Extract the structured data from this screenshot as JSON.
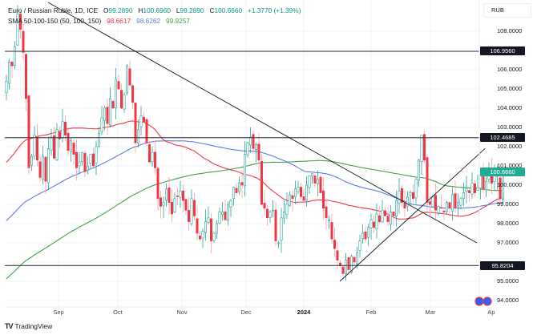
{
  "legend": {
    "symbol": "Euro / Russian Ruble, 1D, ICE",
    "open_label": "O",
    "open": "99.2890",
    "high_label": "H",
    "high": "100.6960",
    "low_label": "L",
    "low": "99.2890",
    "close_label": "C",
    "close": "100.6660",
    "change": "+1.3770 (+1.39%)",
    "indicator": "SMA 50-100-150 (50, 100, 150)",
    "sma50": "98.6617",
    "sma100": "98.6262",
    "sma150": "99.9257"
  },
  "currency": "RUB",
  "price_axis": [
    "108.0000",
    "106.0000",
    "105.0000",
    "104.0000",
    "103.0000",
    "102.0000",
    "101.0000",
    "100.0000",
    "99.0000",
    "98.0000",
    "97.0000",
    "95.0000",
    "94.0000"
  ],
  "price_tags": {
    "level_high": "106.9560",
    "level_mid": "102.4685",
    "last_price": "100.6660",
    "level_low": "95.8204"
  },
  "time_axis": [
    "Sep",
    "Oct",
    "Nov",
    "Dec",
    "2024",
    "Feb",
    "Mar",
    "Ap"
  ],
  "branding": {
    "name": "TradingView",
    "logo_icon": "tradingview-logo-icon"
  },
  "colors": {
    "up": "#26a69a",
    "down": "#f23645",
    "sma50": "#f23645",
    "sma100": "#5b7de0",
    "sma150": "#43a047",
    "last_price_bg": "#22ab94"
  },
  "chart_data": {
    "type": "candlestick",
    "title": "Euro / Russian Ruble, 1D, ICE",
    "xlabel": "",
    "ylabel": "RUB",
    "ylim": [
      93.7,
      109.6
    ],
    "x_ticks": [
      "Sep",
      "Oct",
      "Nov",
      "Dec",
      "2024",
      "Feb",
      "Mar",
      "Ap"
    ],
    "y_ticks": [
      94,
      95,
      96,
      97,
      98,
      99,
      100,
      101,
      102,
      103,
      104,
      105,
      106,
      107,
      108
    ],
    "horizontal_levels": [
      106.956,
      102.4685,
      95.8204
    ],
    "trendlines": [
      {
        "name": "descending",
        "from": [
          60,
          109.5
        ],
        "to": [
          595,
          97.0
        ]
      },
      {
        "name": "ascending",
        "from": [
          424,
          95.0
        ],
        "to": [
          605,
          101.9
        ]
      }
    ],
    "last": {
      "open": 99.289,
      "high": 100.696,
      "low": 99.289,
      "close": 100.666,
      "change": 1.377,
      "change_pct": 1.39
    },
    "closes": [
      105.4,
      106.4,
      106.2,
      107.2,
      108.9,
      108.1,
      106.9,
      104.5,
      100.9,
      101.5,
      102.6,
      101.3,
      100.4,
      101.5,
      100.2,
      101.9,
      102.5,
      101.4,
      102.9,
      102.4,
      103.3,
      102.6,
      101.8,
      102.3,
      101.6,
      100.9,
      101.2,
      101.7,
      100.7,
      101.0,
      101.6,
      101.0,
      102.0,
      102.7,
      103.5,
      104.0,
      103.2,
      104.5,
      104.0,
      105.5,
      105.0,
      104.0,
      104.7,
      106.2,
      105.2,
      104.3,
      102.2,
      102.9,
      103.6,
      103.3,
      102.2,
      101.2,
      101.7,
      100.9,
      99.3,
      98.9,
      99.1,
      99.8,
      99.1,
      98.5,
      99.3,
      99.4,
      99.7,
      99.2,
      98.7,
      98.1,
      99.3,
      98.4,
      97.5,
      97.2,
      97.6,
      98.1,
      98.3,
      97.1,
      97.5,
      98.0,
      98.6,
      98.6,
      98.2,
      99.0,
      99.2,
      99.9,
      99.6,
      100.1,
      100.0,
      101.6,
      102.2,
      102.5,
      101.9,
      102.1,
      101.3,
      99.0,
      98.8,
      98.3,
      98.6,
      98.7,
      97.1,
      97.0,
      98.3,
      98.6,
      99.0,
      99.5,
      99.3,
      99.8,
      99.9,
      99.4,
      99.2,
      100.0,
      100.5,
      100.6,
      100.1,
      100.3,
      99.6,
      98.8,
      98.3,
      98.2,
      97.2,
      96.7,
      96.1,
      95.8,
      95.4,
      96.1,
      95.6,
      96.3,
      96.0,
      96.5,
      97.1,
      97.5,
      97.2,
      97.8,
      98.2,
      97.8,
      98.5,
      98.1,
      98.7,
      98.4,
      98.1,
      98.6,
      98.4,
      99.2,
      99.7,
      99.1,
      98.8,
      99.4,
      99.6,
      99.3,
      100.3,
      101.3,
      102.6,
      101.3,
      99.1,
      99.0,
      99.4,
      98.7,
      98.9,
      98.8,
      98.6,
      99.1,
      98.8,
      99.5,
      98.8,
      99.1,
      99.3,
      99.6,
      99.8,
      99.6,
      100.1,
      99.6,
      99.9,
      100.5,
      99.8,
      100.2,
      100.8,
      100.1,
      100.6,
      100.5,
      99.3,
      100.67
    ]
  }
}
